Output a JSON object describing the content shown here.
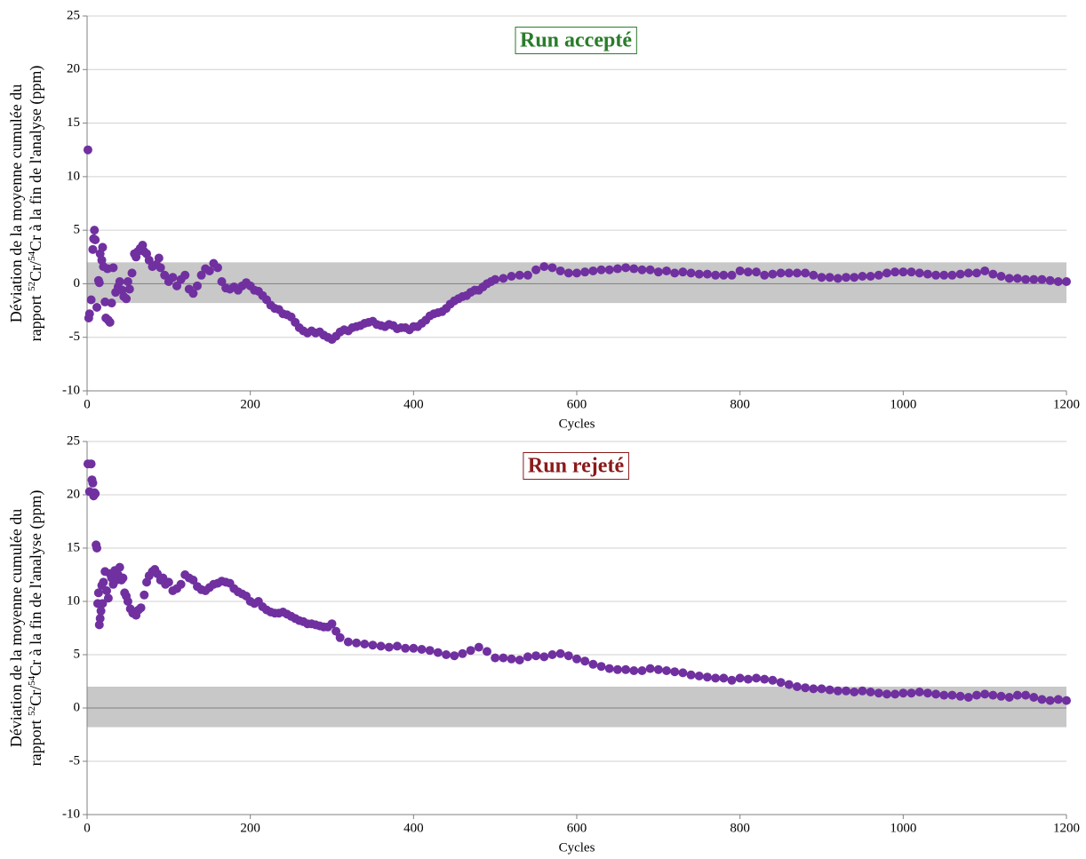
{
  "chart_data": [
    {
      "type": "scatter",
      "annotation": {
        "text": "Run accepté",
        "color": "#2a7d2a"
      },
      "xlabel": "Cycles",
      "ylabel": [
        [
          "Déviation de la moyenne cumulée du"
        ],
        [
          "rapport ",
          "52",
          "Cr/",
          "54",
          "Cr à la fin de l'analyse (ppm)"
        ]
      ],
      "color": "#7030a0",
      "band": [
        -1.8,
        2
      ],
      "band_color": "#c8c8c8",
      "grid": true,
      "xlim": [
        0,
        1200
      ],
      "xticks": [
        0,
        200,
        400,
        600,
        800,
        1000,
        1200
      ],
      "ylim": [
        -10,
        25
      ],
      "yticks": [
        -10,
        -5,
        0,
        5,
        10,
        15,
        20,
        25
      ],
      "x": [
        1,
        2,
        3,
        5,
        7,
        8,
        9,
        10,
        12,
        14,
        15,
        16,
        18,
        19,
        20,
        22,
        23,
        25,
        26,
        28,
        30,
        32,
        35,
        38,
        40,
        43,
        45,
        48,
        50,
        52,
        55,
        58,
        60,
        62,
        65,
        68,
        70,
        73,
        76,
        80,
        85,
        88,
        90,
        95,
        100,
        105,
        110,
        115,
        120,
        125,
        130,
        135,
        140,
        145,
        150,
        155,
        160,
        165,
        170,
        175,
        180,
        185,
        190,
        195,
        200,
        205,
        210,
        215,
        220,
        225,
        230,
        235,
        240,
        245,
        250,
        255,
        260,
        265,
        270,
        275,
        280,
        285,
        290,
        295,
        300,
        305,
        310,
        315,
        320,
        325,
        330,
        335,
        340,
        345,
        350,
        355,
        360,
        365,
        370,
        375,
        380,
        385,
        390,
        395,
        400,
        405,
        410,
        415,
        420,
        425,
        430,
        435,
        440,
        445,
        450,
        455,
        460,
        465,
        470,
        475,
        480,
        485,
        490,
        495,
        500,
        510,
        520,
        530,
        540,
        550,
        560,
        570,
        580,
        590,
        600,
        610,
        620,
        630,
        640,
        650,
        660,
        670,
        680,
        690,
        700,
        710,
        720,
        730,
        740,
        750,
        760,
        770,
        780,
        790,
        800,
        810,
        820,
        830,
        840,
        850,
        860,
        870,
        880,
        890,
        900,
        910,
        920,
        930,
        940,
        950,
        960,
        970,
        980,
        990,
        1000,
        1010,
        1020,
        1030,
        1040,
        1050,
        1060,
        1070,
        1080,
        1090,
        1100,
        1110,
        1120,
        1130,
        1140,
        1150,
        1160,
        1170,
        1180,
        1190,
        1200
      ],
      "values": [
        12.5,
        -3.2,
        -2.8,
        -1.5,
        3.2,
        4.2,
        5,
        4.1,
        -2.2,
        0.3,
        0.1,
        2.8,
        2.2,
        3.4,
        1.6,
        -1.7,
        -3.2,
        1.4,
        -3.4,
        -3.6,
        -1.8,
        1.5,
        -0.8,
        -0.3,
        0.2,
        -0.6,
        -1.2,
        -1.4,
        0.2,
        -0.5,
        1,
        2.8,
        2.5,
        3,
        3.3,
        3.6,
        3,
        2.8,
        2.2,
        1.6,
        1.8,
        2.4,
        1.5,
        0.8,
        0.2,
        0.6,
        -0.2,
        0.4,
        0.8,
        -0.5,
        -0.9,
        -0.2,
        0.8,
        1.4,
        1.2,
        1.9,
        1.5,
        0.2,
        -0.4,
        -0.5,
        -0.3,
        -0.6,
        -0.2,
        0.1,
        -0.2,
        -0.6,
        -0.7,
        -1.1,
        -1.5,
        -2,
        -2.3,
        -2.4,
        -2.8,
        -2.9,
        -3.1,
        -3.6,
        -4.1,
        -4.4,
        -4.6,
        -4.4,
        -4.6,
        -4.5,
        -4.8,
        -5,
        -5.2,
        -4.9,
        -4.5,
        -4.3,
        -4.4,
        -4.1,
        -4,
        -3.9,
        -3.7,
        -3.6,
        -3.5,
        -3.8,
        -3.9,
        -4,
        -3.8,
        -3.9,
        -4.2,
        -4.1,
        -4.1,
        -4.3,
        -4,
        -4,
        -3.7,
        -3.4,
        -3,
        -2.8,
        -2.7,
        -2.6,
        -2.3,
        -1.9,
        -1.6,
        -1.4,
        -1.2,
        -1.1,
        -0.8,
        -0.6,
        -0.6,
        -0.3,
        0,
        0.2,
        0.4,
        0.5,
        0.7,
        0.8,
        0.8,
        1.3,
        1.6,
        1.5,
        1.2,
        1,
        1,
        1.1,
        1.2,
        1.3,
        1.3,
        1.4,
        1.5,
        1.4,
        1.3,
        1.3,
        1.1,
        1.2,
        1,
        1.1,
        1,
        0.9,
        0.9,
        0.8,
        0.8,
        0.8,
        1.2,
        1.1,
        1.1,
        0.8,
        0.9,
        1,
        1,
        1,
        1,
        0.8,
        0.6,
        0.6,
        0.5,
        0.6,
        0.6,
        0.7,
        0.7,
        0.8,
        1,
        1.1,
        1.1,
        1.1,
        1,
        0.9,
        0.8,
        0.8,
        0.8,
        0.9,
        1,
        1,
        1.2,
        0.9,
        0.7,
        0.5,
        0.5,
        0.4,
        0.4,
        0.4,
        0.3,
        0.2,
        0.2
      ]
    },
    {
      "type": "scatter",
      "annotation": {
        "text": "Run rejeté",
        "color": "#8b1a1a"
      },
      "xlabel": "Cycles",
      "ylabel": [
        [
          "Déviation de la moyenne cumulée du"
        ],
        [
          "rapport ",
          "52",
          "Cr/",
          "54",
          "Cr à la fin de l'analyse (ppm)"
        ]
      ],
      "color": "#7030a0",
      "band": [
        -1.8,
        2
      ],
      "band_color": "#c8c8c8",
      "grid": true,
      "xlim": [
        0,
        1200
      ],
      "xticks": [
        0,
        200,
        400,
        600,
        800,
        1000,
        1200
      ],
      "ylim": [
        -10,
        25
      ],
      "yticks": [
        -10,
        -5,
        0,
        5,
        10,
        15,
        20,
        25
      ],
      "x": [
        1,
        3,
        5,
        6,
        7,
        8,
        9,
        10,
        11,
        12,
        13,
        14,
        15,
        16,
        17,
        18,
        19,
        20,
        22,
        24,
        26,
        28,
        30,
        32,
        34,
        36,
        38,
        40,
        42,
        44,
        46,
        48,
        50,
        53,
        56,
        60,
        63,
        66,
        70,
        73,
        76,
        80,
        83,
        86,
        90,
        93,
        96,
        100,
        105,
        110,
        115,
        120,
        125,
        130,
        135,
        140,
        145,
        150,
        155,
        160,
        165,
        170,
        175,
        180,
        185,
        190,
        195,
        200,
        205,
        210,
        215,
        220,
        225,
        230,
        235,
        240,
        245,
        250,
        255,
        260,
        265,
        270,
        275,
        280,
        285,
        290,
        295,
        300,
        305,
        310,
        320,
        330,
        340,
        350,
        360,
        370,
        380,
        390,
        400,
        410,
        420,
        430,
        440,
        450,
        460,
        470,
        480,
        490,
        500,
        510,
        520,
        530,
        540,
        550,
        560,
        570,
        580,
        590,
        600,
        610,
        620,
        630,
        640,
        650,
        660,
        670,
        680,
        690,
        700,
        710,
        720,
        730,
        740,
        750,
        760,
        770,
        780,
        790,
        800,
        810,
        820,
        830,
        840,
        850,
        860,
        870,
        880,
        890,
        900,
        910,
        920,
        930,
        940,
        950,
        960,
        970,
        980,
        990,
        1000,
        1010,
        1020,
        1030,
        1040,
        1050,
        1060,
        1070,
        1080,
        1090,
        1100,
        1110,
        1120,
        1130,
        1140,
        1150,
        1160,
        1170,
        1180,
        1190,
        1200
      ],
      "values": [
        22.9,
        20.3,
        22.9,
        21.4,
        21.1,
        19.9,
        20.2,
        20.1,
        15.3,
        15,
        9.8,
        10.8,
        7.8,
        8.4,
        9.1,
        11.5,
        9.8,
        11.8,
        12.8,
        11,
        10.3,
        12.6,
        12.2,
        11.6,
        12.9,
        12,
        12.5,
        13.2,
        12,
        12.2,
        10.8,
        10.5,
        10,
        9.3,
        8.9,
        8.7,
        9.2,
        9.4,
        10.6,
        11.8,
        12.4,
        12.8,
        13,
        12.6,
        12,
        12.2,
        11.6,
        11.8,
        11,
        11.2,
        11.6,
        12.5,
        12.2,
        12,
        11.4,
        11.1,
        11,
        11.3,
        11.6,
        11.7,
        11.9,
        11.8,
        11.7,
        11.2,
        10.9,
        10.7,
        10.5,
        10,
        9.8,
        10,
        9.5,
        9.2,
        9,
        8.9,
        8.9,
        9,
        8.8,
        8.6,
        8.4,
        8.2,
        8.1,
        7.9,
        7.9,
        7.8,
        7.7,
        7.6,
        7.6,
        7.9,
        7.2,
        6.6,
        6.2,
        6.1,
        6,
        5.9,
        5.8,
        5.7,
        5.8,
        5.6,
        5.6,
        5.5,
        5.4,
        5.2,
        5,
        4.9,
        5.1,
        5.4,
        5.7,
        5.3,
        4.7,
        4.7,
        4.6,
        4.5,
        4.8,
        4.9,
        4.8,
        5,
        5.1,
        4.9,
        4.6,
        4.4,
        4.1,
        3.9,
        3.7,
        3.6,
        3.6,
        3.5,
        3.5,
        3.7,
        3.6,
        3.5,
        3.4,
        3.3,
        3.1,
        3,
        2.9,
        2.8,
        2.8,
        2.6,
        2.8,
        2.7,
        2.8,
        2.7,
        2.6,
        2.4,
        2.2,
        2,
        1.9,
        1.8,
        1.8,
        1.7,
        1.6,
        1.6,
        1.5,
        1.6,
        1.5,
        1.4,
        1.3,
        1.3,
        1.4,
        1.4,
        1.5,
        1.4,
        1.3,
        1.2,
        1.2,
        1.1,
        1,
        1.2,
        1.3,
        1.2,
        1.1,
        1,
        1.2,
        1.2,
        1,
        0.8,
        0.7,
        0.8,
        0.7
      ]
    }
  ]
}
